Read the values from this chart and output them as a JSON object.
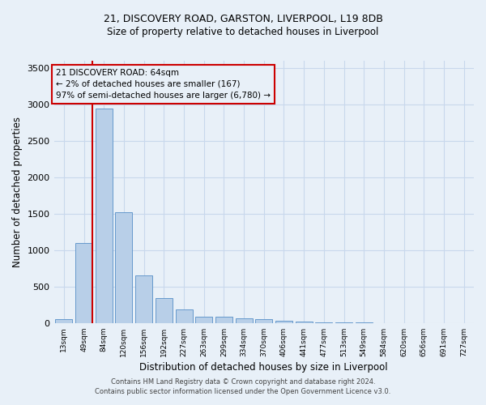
{
  "title_line1": "21, DISCOVERY ROAD, GARSTON, LIVERPOOL, L19 8DB",
  "title_line2": "Size of property relative to detached houses in Liverpool",
  "xlabel": "Distribution of detached houses by size in Liverpool",
  "ylabel": "Number of detached properties",
  "footer_line1": "Contains HM Land Registry data © Crown copyright and database right 2024.",
  "footer_line2": "Contains public sector information licensed under the Open Government Licence v3.0.",
  "annotation_line1": "21 DISCOVERY ROAD: 64sqm",
  "annotation_line2": "← 2% of detached houses are smaller (167)",
  "annotation_line3": "97% of semi-detached houses are larger (6,780) →",
  "bar_color": "#b8cfe8",
  "bar_edge_color": "#6699cc",
  "grid_color": "#c8d8ec",
  "background_color": "#e8f0f8",
  "redline_color": "#cc0000",
  "redbox_color": "#cc0000",
  "categories": [
    "13sqm",
    "49sqm",
    "84sqm",
    "120sqm",
    "156sqm",
    "192sqm",
    "227sqm",
    "263sqm",
    "299sqm",
    "334sqm",
    "370sqm",
    "406sqm",
    "441sqm",
    "477sqm",
    "513sqm",
    "549sqm",
    "584sqm",
    "620sqm",
    "656sqm",
    "691sqm",
    "727sqm"
  ],
  "values": [
    50,
    1100,
    2940,
    1520,
    650,
    340,
    185,
    90,
    90,
    60,
    50,
    35,
    20,
    10,
    5,
    5,
    3,
    2,
    1,
    1,
    1
  ],
  "ylim": [
    0,
    3600
  ],
  "figsize": [
    6.0,
    5.0
  ],
  "dpi": 100
}
